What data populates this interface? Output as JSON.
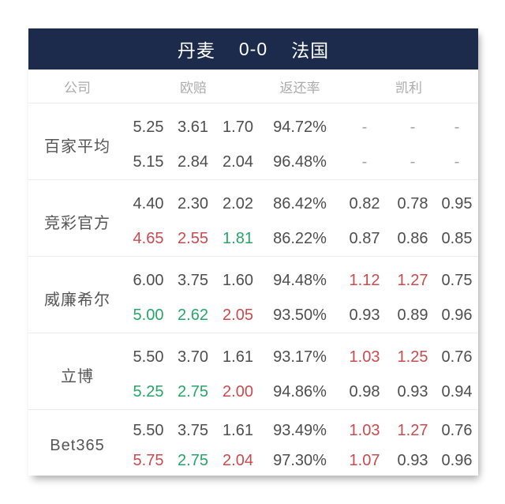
{
  "header": {
    "home": "丹麦",
    "score": "0-0",
    "away": "法国"
  },
  "columns": {
    "company": "公司",
    "odds": "欧赔",
    "return_rate": "返还率",
    "kelly": "凯利"
  },
  "colors": {
    "navy": "#1c2a4c",
    "red": "#cb4a4e",
    "green": "#26a669",
    "dark": "#4e4e4e",
    "muted": "#a4a4a4"
  },
  "rows": [
    {
      "company": "百家平均",
      "lines": [
        {
          "odds": [
            {
              "v": "5.25",
              "c": "dark"
            },
            {
              "v": "3.61",
              "c": "dark"
            },
            {
              "v": "1.70",
              "c": "dark"
            }
          ],
          "ret": {
            "v": "94.72%",
            "c": "dark"
          },
          "kelly": [
            {
              "v": "-",
              "c": "muted"
            },
            {
              "v": "-",
              "c": "muted"
            },
            {
              "v": "-",
              "c": "muted"
            }
          ]
        },
        {
          "odds": [
            {
              "v": "5.15",
              "c": "dark"
            },
            {
              "v": "2.84",
              "c": "dark"
            },
            {
              "v": "2.04",
              "c": "dark"
            }
          ],
          "ret": {
            "v": "96.48%",
            "c": "dark"
          },
          "kelly": [
            {
              "v": "-",
              "c": "muted"
            },
            {
              "v": "-",
              "c": "muted"
            },
            {
              "v": "-",
              "c": "muted"
            }
          ]
        }
      ]
    },
    {
      "company": "竞彩官方",
      "lines": [
        {
          "odds": [
            {
              "v": "4.40",
              "c": "dark"
            },
            {
              "v": "2.30",
              "c": "dark"
            },
            {
              "v": "2.02",
              "c": "dark"
            }
          ],
          "ret": {
            "v": "86.42%",
            "c": "dark"
          },
          "kelly": [
            {
              "v": "0.82",
              "c": "dark"
            },
            {
              "v": "0.78",
              "c": "dark"
            },
            {
              "v": "0.95",
              "c": "dark"
            }
          ]
        },
        {
          "odds": [
            {
              "v": "4.65",
              "c": "red"
            },
            {
              "v": "2.55",
              "c": "red"
            },
            {
              "v": "1.81",
              "c": "green"
            }
          ],
          "ret": {
            "v": "86.22%",
            "c": "dark"
          },
          "kelly": [
            {
              "v": "0.87",
              "c": "dark"
            },
            {
              "v": "0.86",
              "c": "dark"
            },
            {
              "v": "0.85",
              "c": "dark"
            }
          ]
        }
      ]
    },
    {
      "company": "威廉希尔",
      "lines": [
        {
          "odds": [
            {
              "v": "6.00",
              "c": "dark"
            },
            {
              "v": "3.75",
              "c": "dark"
            },
            {
              "v": "1.60",
              "c": "dark"
            }
          ],
          "ret": {
            "v": "94.48%",
            "c": "dark"
          },
          "kelly": [
            {
              "v": "1.12",
              "c": "red"
            },
            {
              "v": "1.27",
              "c": "red"
            },
            {
              "v": "0.75",
              "c": "dark"
            }
          ]
        },
        {
          "odds": [
            {
              "v": "5.00",
              "c": "green"
            },
            {
              "v": "2.62",
              "c": "green"
            },
            {
              "v": "2.05",
              "c": "red"
            }
          ],
          "ret": {
            "v": "93.50%",
            "c": "dark"
          },
          "kelly": [
            {
              "v": "0.93",
              "c": "dark"
            },
            {
              "v": "0.89",
              "c": "dark"
            },
            {
              "v": "0.96",
              "c": "dark"
            }
          ]
        }
      ]
    },
    {
      "company": "立博",
      "lines": [
        {
          "odds": [
            {
              "v": "5.50",
              "c": "dark"
            },
            {
              "v": "3.70",
              "c": "dark"
            },
            {
              "v": "1.61",
              "c": "dark"
            }
          ],
          "ret": {
            "v": "93.17%",
            "c": "dark"
          },
          "kelly": [
            {
              "v": "1.03",
              "c": "red"
            },
            {
              "v": "1.25",
              "c": "red"
            },
            {
              "v": "0.76",
              "c": "dark"
            }
          ]
        },
        {
          "odds": [
            {
              "v": "5.25",
              "c": "green"
            },
            {
              "v": "2.75",
              "c": "green"
            },
            {
              "v": "2.00",
              "c": "red"
            }
          ],
          "ret": {
            "v": "94.86%",
            "c": "dark"
          },
          "kelly": [
            {
              "v": "0.98",
              "c": "dark"
            },
            {
              "v": "0.93",
              "c": "dark"
            },
            {
              "v": "0.94",
              "c": "dark"
            }
          ]
        }
      ]
    },
    {
      "company": "Bet365",
      "lines": [
        {
          "odds": [
            {
              "v": "5.50",
              "c": "dark"
            },
            {
              "v": "3.75",
              "c": "dark"
            },
            {
              "v": "1.61",
              "c": "dark"
            }
          ],
          "ret": {
            "v": "93.49%",
            "c": "dark"
          },
          "kelly": [
            {
              "v": "1.03",
              "c": "red"
            },
            {
              "v": "1.27",
              "c": "red"
            },
            {
              "v": "0.76",
              "c": "dark"
            }
          ]
        },
        {
          "odds": [
            {
              "v": "5.75",
              "c": "red"
            },
            {
              "v": "2.75",
              "c": "green"
            },
            {
              "v": "2.04",
              "c": "red"
            }
          ],
          "ret": {
            "v": "97.30%",
            "c": "dark"
          },
          "kelly": [
            {
              "v": "1.07",
              "c": "red"
            },
            {
              "v": "0.93",
              "c": "dark"
            },
            {
              "v": "0.96",
              "c": "dark"
            }
          ]
        }
      ]
    }
  ]
}
